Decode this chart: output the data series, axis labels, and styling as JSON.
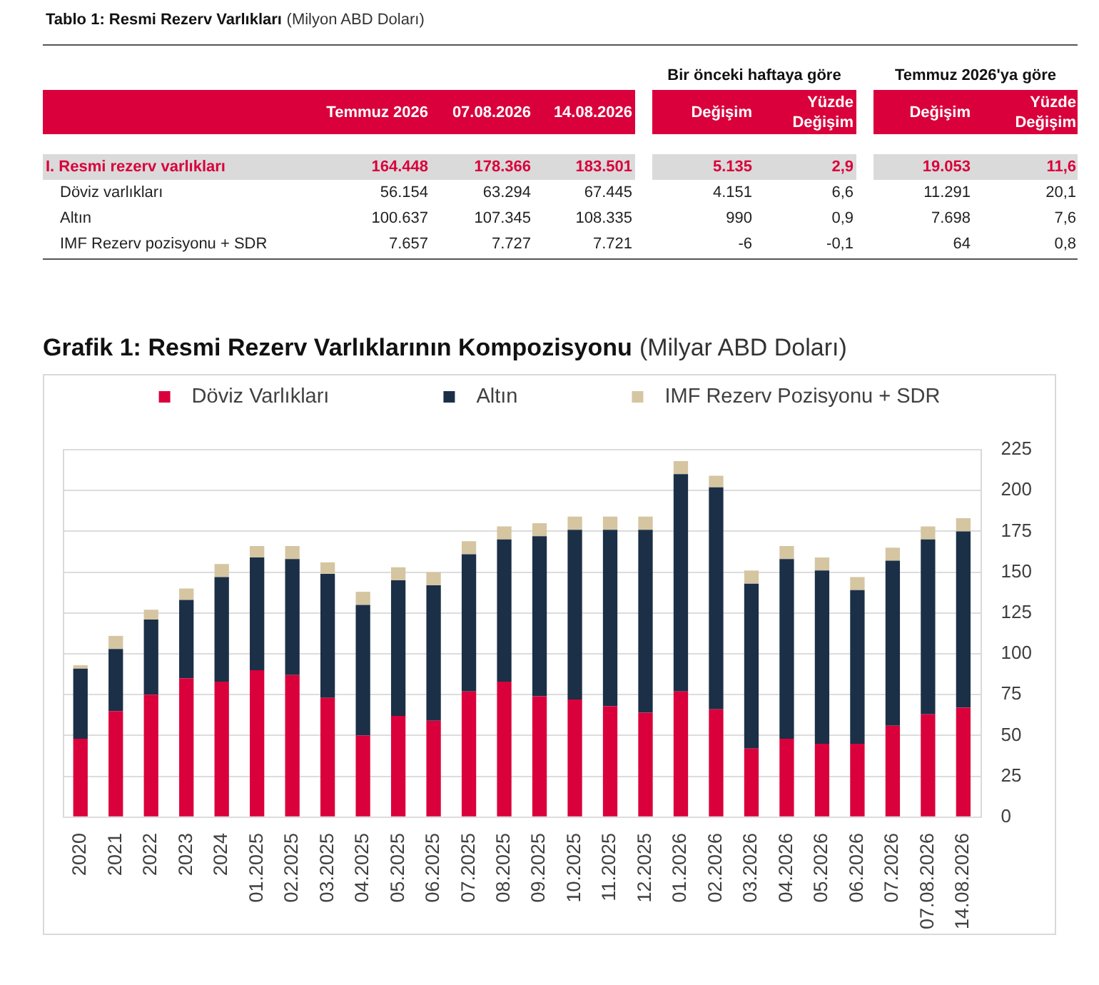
{
  "chart_data": [
    {
      "type": "other",
      "title": "Tablo 1: Resmi Rezerv Varlıkları",
      "subtitle": "(Milyon ABD Doları)",
      "annotations": [
        "Bir önceki haftaya göre",
        "Temmuz 2026'ya göre"
      ],
      "categories": [
        "I. Resmi rezerv varlıkları",
        "Döviz varlıkları",
        "Altın",
        "IMF Rezerv pozisyonu + SDR"
      ],
      "series": [
        {
          "name": "Temmuz 2026",
          "values": [
            164448,
            56154,
            100637,
            7657
          ],
          "value_labels": [
            "164.448",
            "56.154",
            "100.637",
            "7.657"
          ]
        },
        {
          "name": "07.08.2026",
          "values": [
            178366,
            63294,
            107345,
            7727
          ],
          "value_labels": [
            "178.366",
            "63.294",
            "107.345",
            "7.727"
          ]
        },
        {
          "name": "14.08.2026",
          "values": [
            183501,
            67445,
            108335,
            7721
          ],
          "value_labels": [
            "183.501",
            "67.445",
            "108.335",
            "7.721"
          ]
        },
        {
          "name": "Değişim",
          "values": [
            5135,
            4151,
            990,
            -6
          ],
          "value_labels": [
            "5.135",
            "4.151",
            "990",
            "-6"
          ]
        },
        {
          "name": "Yüzde Değişim",
          "values": [
            2.9,
            6.6,
            0.9,
            -0.1
          ],
          "value_labels": [
            "2,9",
            "6,6",
            "0,9",
            "-0,1"
          ]
        },
        {
          "name": "Değişim",
          "values": [
            19053,
            11291,
            7698,
            64
          ],
          "value_labels": [
            "19.053",
            "11.291",
            "7.698",
            "64"
          ]
        },
        {
          "name": "Yüzde Değişim",
          "values": [
            11.6,
            20.1,
            7.6,
            0.8
          ],
          "value_labels": [
            "11,6",
            "20,1",
            "7,6",
            "0,8"
          ]
        }
      ]
    },
    {
      "type": "bar",
      "title": "Grafik 1: Resmi Rezerv Varlıklarının Kompozisyonu",
      "subtitle": "(Milyar ABD Doları)",
      "stacked": true,
      "grid": "y",
      "legend": "top",
      "categories": [
        "2020",
        "2021",
        "2022",
        "2023",
        "2024",
        "01.2025",
        "02.2025",
        "03.2025",
        "04.2025",
        "05.2025",
        "06.2025",
        "07.2025",
        "08.2025",
        "09.2025",
        "10.2025",
        "11.2025",
        "12.2025",
        "01.2026",
        "02.2026",
        "03.2026",
        "04.2026",
        "05.2026",
        "06.2026",
        "07.2026",
        "07.08.2026",
        "14.08.2026"
      ],
      "series": [
        {
          "name": "Döviz Varlıkları",
          "color": "#d9003b",
          "values": [
            48,
            65,
            75,
            85,
            83,
            90,
            87,
            73,
            50,
            62,
            59,
            77,
            83,
            74,
            72,
            68,
            64,
            77,
            66,
            42,
            48,
            45,
            45,
            56,
            63,
            67
          ]
        },
        {
          "name": "Altın",
          "color": "#1b2f47",
          "values": [
            43,
            38,
            46,
            48,
            64,
            69,
            71,
            76,
            80,
            83,
            83,
            84,
            87,
            98,
            104,
            108,
            112,
            133,
            136,
            101,
            110,
            106,
            94,
            101,
            107,
            108
          ]
        },
        {
          "name": "IMF Rezerv Pozisyonu + SDR",
          "color": "#d5c5a1",
          "values": [
            2,
            8,
            6,
            7,
            8,
            7,
            8,
            7,
            8,
            8,
            8,
            8,
            8,
            8,
            8,
            8,
            8,
            8,
            7,
            8,
            8,
            8,
            8,
            8,
            8,
            8
          ]
        }
      ],
      "ylim": [
        0,
        225
      ],
      "yticks": [
        0,
        25,
        50,
        75,
        100,
        125,
        150,
        175,
        200,
        225
      ]
    }
  ]
}
